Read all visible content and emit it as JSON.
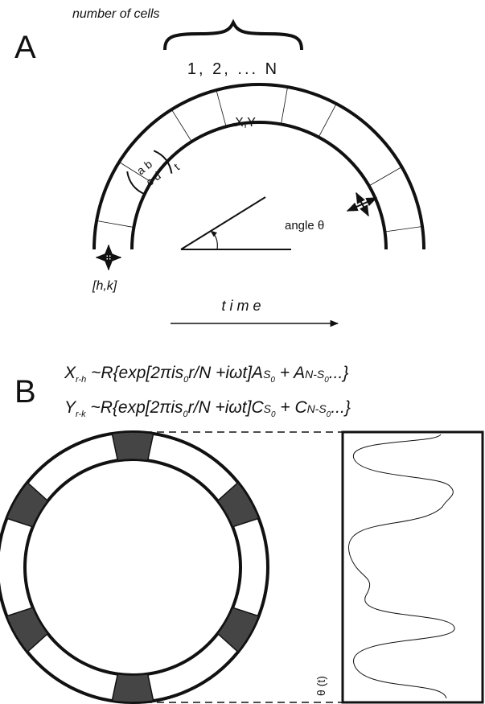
{
  "panel_a": {
    "label": "A",
    "cells_label": "number of cells",
    "cells_range": "1, 2, ... N",
    "cell_state": "X,Y",
    "matrix": {
      "row1": "a b",
      "row2": "c d",
      "subscript": "t"
    },
    "angle_label": "angle θ",
    "position_label": "[h,k]",
    "time_label": "t i m e"
  },
  "panel_b": {
    "label": "B",
    "equations": [
      {
        "parts": [
          "X",
          "r-h",
          " ~R{exp[2πis",
          "0",
          "r/N +iωt]A",
          "S",
          "0",
          " + A",
          "N-S",
          "0",
          "...}"
        ]
      },
      {
        "parts": [
          "Y",
          "r-k",
          " ~R{exp[2πis",
          "0",
          "r/N +iωt]C",
          "S",
          "0",
          " + C",
          "N-S",
          "0",
          "...}"
        ]
      }
    ],
    "trace_label": "θ (t)"
  }
}
